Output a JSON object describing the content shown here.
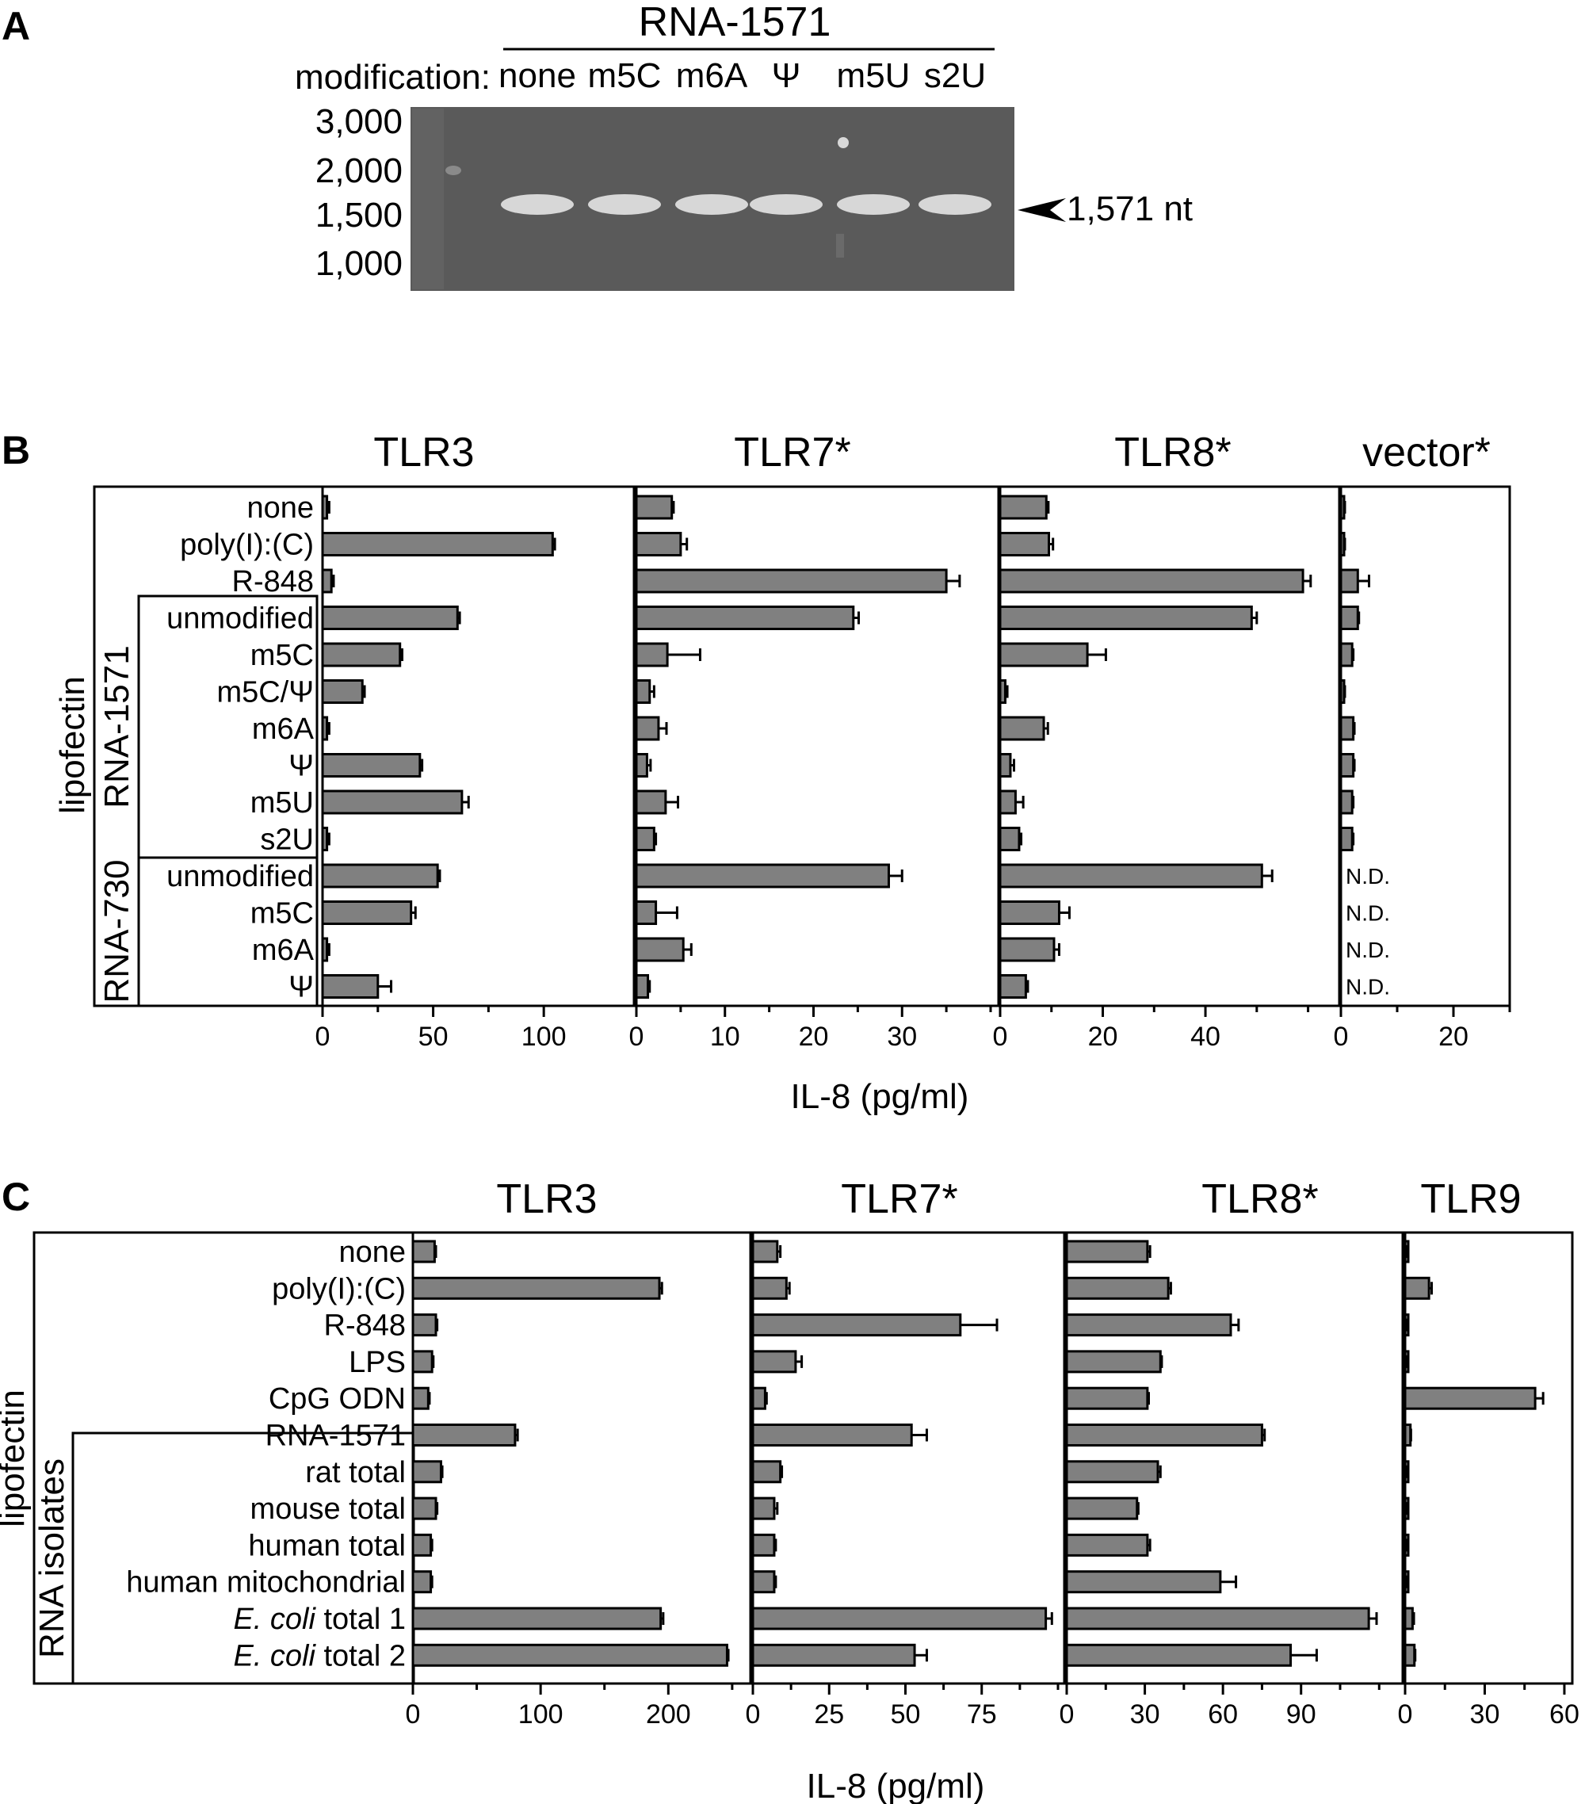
{
  "panel_a": {
    "letter": "A",
    "construct": "RNA-1571",
    "modification_label": "modification:",
    "lanes": [
      "none",
      "m5C",
      "m6A",
      "Ψ",
      "m5U",
      "s2U"
    ],
    "ladder": [
      "3,000",
      "2,000",
      "1,500",
      "1,000"
    ],
    "band_label": "1,571 nt",
    "colors": {
      "gel_bg": "#5a5a5a",
      "band": "#e4e4e4"
    }
  },
  "panel_b": {
    "letter": "B",
    "side_label": "lipofectin",
    "group_labels": [
      "RNA-1571",
      "RNA-730"
    ],
    "row_labels": [
      "none",
      "poly(I):(C)",
      "R-848",
      "unmodified",
      "m5C",
      "m5C/Ψ",
      "m6A",
      "Ψ",
      "m5U",
      "s2U",
      "unmodified",
      "m5C",
      "m6A",
      "Ψ"
    ],
    "xlabel": "IL-8 (pg/ml)",
    "nd_label": "N.D."
  },
  "panel_c": {
    "letter": "C",
    "side_label": "lipofectin",
    "group_labels": [
      "RNA isolates"
    ],
    "row_labels": [
      "none",
      "poly(I):(C)",
      "R-848",
      "LPS",
      "CpG ODN",
      "RNA-1571",
      "rat total",
      "mouse  total",
      "human total",
      "human mitochondrial",
      "E. coli total 1",
      "E. coli total 2"
    ],
    "italic_prefix": "E. coli",
    "xlabel": "IL-8 (pg/ml)"
  },
  "chart_data": [
    {
      "type": "bar",
      "orientation": "horizontal",
      "panel": "B",
      "title": "TLR3",
      "categories": [
        "none",
        "poly(I):(C)",
        "R-848",
        "unmodified",
        "m5C",
        "m5C/Ψ",
        "m6A",
        "Ψ",
        "m5U",
        "s2U",
        "unmodified",
        "m5C",
        "m6A",
        "Ψ"
      ],
      "values": [
        2,
        104,
        4,
        61,
        35,
        18,
        2,
        44,
        63,
        2,
        52,
        40,
        2,
        25
      ],
      "errors": [
        1,
        1,
        1,
        1,
        1,
        1,
        1,
        1,
        3,
        1,
        1,
        2,
        1,
        6
      ],
      "xlim": [
        0,
        120
      ],
      "xticks": [
        0,
        50,
        100
      ],
      "fill": "#808080"
    },
    {
      "type": "bar",
      "orientation": "horizontal",
      "panel": "B",
      "title": "TLR7*",
      "categories": [
        "none",
        "poly(I):(C)",
        "R-848",
        "unmodified",
        "m5C",
        "m5C/Ψ",
        "m6A",
        "Ψ",
        "m5U",
        "s2U",
        "unmodified",
        "m5C",
        "m6A",
        "Ψ"
      ],
      "values": [
        4,
        5,
        35,
        24.5,
        3.5,
        1.5,
        2.5,
        1.2,
        3.3,
        2,
        28.5,
        2.2,
        5.3,
        1.3
      ],
      "errors": [
        0.2,
        0.7,
        1.5,
        0.6,
        3.7,
        0.5,
        0.9,
        0.4,
        1.4,
        0.2,
        1.5,
        2.4,
        0.9,
        0.2
      ],
      "xlim": [
        0,
        40
      ],
      "xticks": [
        0,
        10,
        20,
        30
      ],
      "fill": "#808080"
    },
    {
      "type": "bar",
      "orientation": "horizontal",
      "panel": "B",
      "title": "TLR8*",
      "categories": [
        "none",
        "poly(I):(C)",
        "R-848",
        "unmodified",
        "m5C",
        "m5C/Ψ",
        "m6A",
        "Ψ",
        "m5U",
        "s2U",
        "unmodified",
        "m5C",
        "m6A",
        "Ψ"
      ],
      "values": [
        9,
        9.5,
        59,
        49,
        17,
        1,
        8.5,
        2,
        3,
        3.7,
        51,
        11.5,
        10.5,
        5
      ],
      "errors": [
        0.4,
        0.8,
        1.5,
        1,
        3.6,
        0.4,
        0.8,
        0.7,
        1.5,
        0.4,
        2,
        2,
        1,
        0.4
      ],
      "xlim": [
        0,
        63
      ],
      "xticks": [
        0,
        20,
        40
      ],
      "fill": "#808080"
    },
    {
      "type": "bar",
      "orientation": "horizontal",
      "panel": "B",
      "title": "vector*",
      "categories": [
        "none",
        "poly(I):(C)",
        "R-848",
        "unmodified",
        "m5C",
        "m5C/Ψ",
        "m6A",
        "Ψ",
        "m5U",
        "s2U"
      ],
      "values": [
        0.5,
        0.5,
        3,
        3,
        2,
        0.5,
        2.2,
        2.2,
        2,
        2
      ],
      "errors": [
        0.2,
        0.2,
        2,
        0.2,
        0.2,
        0.2,
        0.2,
        0.2,
        0.2,
        0.2
      ],
      "not_determined": [
        "unmodified",
        "m5C",
        "m6A",
        "Ψ"
      ],
      "xlim": [
        0,
        30
      ],
      "xticks": [
        0,
        20
      ],
      "fill": "#808080"
    },
    {
      "type": "bar",
      "orientation": "horizontal",
      "panel": "C",
      "title": "TLR3",
      "categories": [
        "none",
        "poly(I):(C)",
        "R-848",
        "LPS",
        "CpG ODN",
        "RNA-1571",
        "rat total",
        "mouse  total",
        "human total",
        "human mitochondrial",
        "E. coli total 1",
        "E. coli total 2"
      ],
      "values": [
        17,
        193,
        18,
        15,
        12,
        80,
        22,
        18,
        14,
        14,
        194,
        246
      ],
      "errors": [
        1,
        2,
        1,
        1,
        1,
        2,
        1,
        1,
        1,
        1,
        2,
        1
      ],
      "xlim": [
        0,
        260
      ],
      "xticks": [
        0,
        100,
        200
      ],
      "fill": "#808080"
    },
    {
      "type": "bar",
      "orientation": "horizontal",
      "panel": "C",
      "title": "TLR7*",
      "categories": [
        "none",
        "poly(I):(C)",
        "R-848",
        "LPS",
        "CpG ODN",
        "RNA-1571",
        "rat total",
        "mouse  total",
        "human total",
        "human mitochondrial",
        "E. coli total 1",
        "E. coli total 2"
      ],
      "values": [
        8,
        11,
        68,
        14,
        4,
        52,
        9,
        7,
        7,
        7,
        96,
        53
      ],
      "errors": [
        1,
        1,
        12,
        2,
        0.5,
        5,
        0.5,
        1,
        0.5,
        0.5,
        2,
        4
      ],
      "xlim": [
        0,
        100
      ],
      "xticks": [
        0,
        25,
        50,
        75
      ],
      "fill": "#808080"
    },
    {
      "type": "bar",
      "orientation": "horizontal",
      "panel": "C",
      "title": "TLR8*",
      "categories": [
        "none",
        "poly(I):(C)",
        "R-848",
        "LPS",
        "CpG ODN",
        "RNA-1571",
        "rat total",
        "mouse  total",
        "human total",
        "human mitochondrial",
        "E. coli total 1",
        "E. coli total 2"
      ],
      "values": [
        31,
        39,
        63,
        36,
        31,
        75,
        35,
        27,
        31,
        59,
        116,
        86
      ],
      "errors": [
        1,
        1,
        3,
        0.5,
        0.5,
        1,
        1,
        0.5,
        1,
        6,
        3,
        10
      ],
      "xlim": [
        0,
        126
      ],
      "xticks": [
        0,
        30,
        60,
        90
      ],
      "fill": "#808080"
    },
    {
      "type": "bar",
      "orientation": "horizontal",
      "panel": "C",
      "title": "TLR9",
      "categories": [
        "none",
        "poly(I):(C)",
        "R-848",
        "LPS",
        "CpG ODN",
        "RNA-1571",
        "rat total",
        "mouse  total",
        "human total",
        "human mitochondrial",
        "E. coli total 1",
        "E. coli total 2"
      ],
      "values": [
        0.5,
        9,
        0.5,
        0.5,
        49,
        2,
        0.5,
        0.5,
        0.5,
        0.5,
        2.8,
        3.5
      ],
      "errors": [
        0.2,
        1,
        0.2,
        0.2,
        3,
        0.2,
        0.2,
        0.2,
        0.2,
        0.2,
        0.5,
        0.3
      ],
      "xlim": [
        0,
        63
      ],
      "xticks": [
        0,
        30,
        60
      ],
      "fill": "#808080"
    }
  ]
}
